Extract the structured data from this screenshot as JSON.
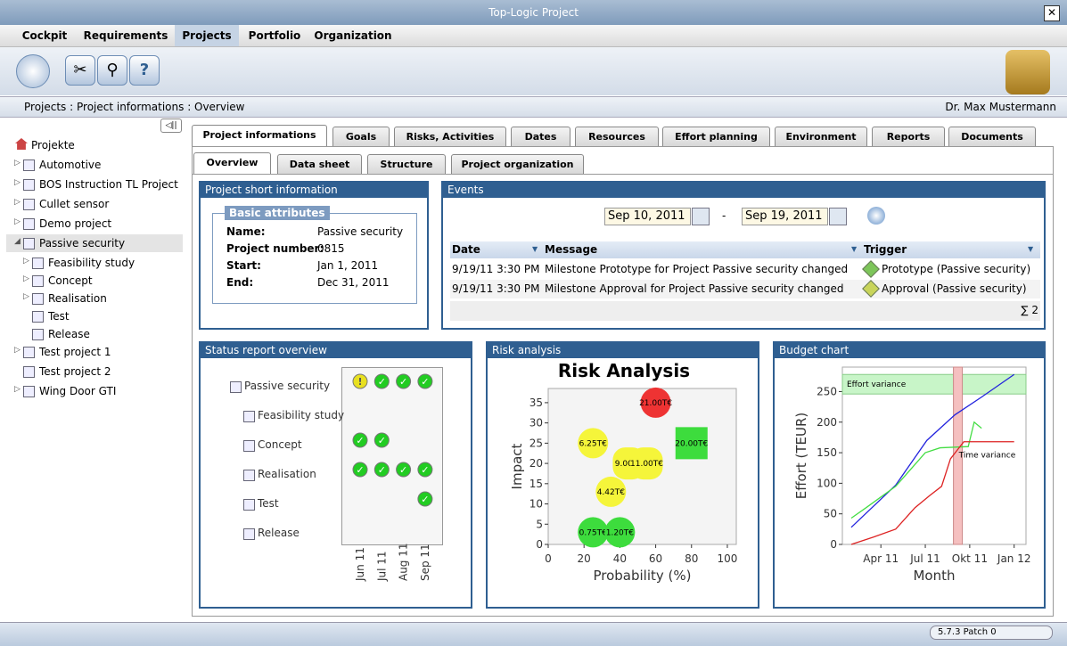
{
  "window_title": "Top-Logic Project",
  "menu": {
    "items": [
      "Cockpit",
      "Requirements",
      "Projects",
      "Portfolio",
      "Organization"
    ],
    "active": 2
  },
  "breadcrumb": [
    "Projects :",
    "Project informations :",
    "Overview"
  ],
  "user": "Dr. Max Mustermann",
  "tree": {
    "root": "Projekte",
    "items": [
      {
        "label": "Automotive",
        "state": "collapsed"
      },
      {
        "label": "BOS Instruction TL Project",
        "state": "collapsed"
      },
      {
        "label": "Cullet sensor",
        "state": "collapsed"
      },
      {
        "label": "Demo project",
        "state": "collapsed"
      },
      {
        "label": "Passive security",
        "state": "expanded",
        "selected": true,
        "children": [
          {
            "label": "Feasibility study",
            "state": "collapsed"
          },
          {
            "label": "Concept",
            "state": "collapsed"
          },
          {
            "label": "Realisation",
            "state": "collapsed"
          },
          {
            "label": "Test",
            "state": "leaf"
          },
          {
            "label": "Release",
            "state": "leaf"
          }
        ]
      },
      {
        "label": "Test project 1",
        "state": "collapsed"
      },
      {
        "label": "Test project 2",
        "state": "leaf"
      },
      {
        "label": "Wing Door GTI",
        "state": "collapsed"
      }
    ]
  },
  "tabs": {
    "items": [
      "Project informations",
      "Goals",
      "Risks, Activities",
      "Dates",
      "Resources",
      "Effort planning",
      "Environment",
      "Reports",
      "Documents"
    ],
    "active": 0
  },
  "subtabs": {
    "items": [
      "Overview",
      "Data sheet",
      "Structure",
      "Project organization"
    ],
    "active": 0
  },
  "short_info": {
    "title": "Project short information",
    "group": "Basic attributes",
    "fields": [
      {
        "label": "Name:",
        "value": "Passive security"
      },
      {
        "label": "Project number:",
        "value": "0815"
      },
      {
        "label": "Start:",
        "value": "Jan 1, 2011"
      },
      {
        "label": "End:",
        "value": "Dec 31, 2011"
      }
    ]
  },
  "events": {
    "title": "Events",
    "from": "Sep 10, 2011",
    "separator": "-",
    "to": "Sep 19, 2011",
    "columns": [
      "Date",
      "Message",
      "Trigger"
    ],
    "rows": [
      {
        "date": "9/19/11 3:30 PM",
        "message": "Milestone Prototype for Project Passive security changed",
        "trigger": "Prototype (Passive security)",
        "color": "#7dc55a"
      },
      {
        "date": "9/19/11 3:30 PM",
        "message": "Milestone Approval for Project Passive security changed",
        "trigger": "Approval (Passive security)",
        "color": "#c8d45a"
      }
    ],
    "sum": "∑ 2"
  },
  "status": {
    "title": "Status report overview",
    "items": [
      "Passive security",
      "Feasibility study",
      "Concept",
      "Realisation",
      "Test",
      "Release"
    ],
    "months": [
      "Jun 11",
      "Jul 11",
      "Aug 11",
      "Sep 11"
    ],
    "statuses": [
      [
        "warning",
        "ok",
        "ok",
        "ok"
      ],
      [
        "none",
        "none",
        "none",
        "none"
      ],
      [
        "ok",
        "ok",
        "none",
        "none"
      ],
      [
        "ok",
        "ok",
        "ok",
        "ok"
      ],
      [
        "none",
        "none",
        "none",
        "ok"
      ],
      [
        "none",
        "none",
        "none",
        "none"
      ]
    ]
  },
  "risk": {
    "panel_title": "Risk analysis",
    "chart_data": {
      "type": "scatter",
      "title": "Risk Analysis",
      "x_label": "Probability (%)",
      "y_label": "Impact",
      "xlim": [
        0,
        105
      ],
      "xticks": [
        0,
        20,
        40,
        60,
        80,
        100
      ],
      "ylim": [
        0,
        38.5
      ],
      "yticks": [
        0,
        5,
        10,
        15,
        20,
        25,
        30,
        35
      ],
      "x": [
        60,
        25,
        80,
        45,
        55,
        35,
        25,
        40
      ],
      "values": [
        35,
        25,
        25,
        20,
        20,
        13,
        3,
        3
      ],
      "labels": [
        "21.00T€",
        "6.25T€",
        "20.00T€",
        "9.00T€",
        "11.00T€",
        "4.42T€",
        "0.75T€",
        "1.20T€"
      ],
      "colors": [
        "#ee3333",
        "#f5f53a",
        "#3ddc3d",
        "#f5f53a",
        "#f5f53a",
        "#f5f53a",
        "#3ddc3d",
        "#3ddc3d"
      ],
      "shapes": [
        "circle",
        "circle",
        "square",
        "rounded",
        "rounded",
        "circle",
        "circle",
        "circle"
      ]
    }
  },
  "budget": {
    "panel_title": "Budget chart",
    "chart_data": {
      "type": "line",
      "x_label": "Month",
      "y_label": "Effort (TEUR)",
      "xlim": [
        1.4,
        13.8
      ],
      "xticks": [
        {
          "value": 4,
          "label": "Apr 11"
        },
        {
          "value": 7,
          "label": "Jul 11"
        },
        {
          "value": 10,
          "label": "Okt 11"
        },
        {
          "value": 13,
          "label": "Jan 12"
        }
      ],
      "ylim": [
        0,
        290
      ],
      "yticks": [
        0,
        50,
        100,
        150,
        200,
        250
      ],
      "series": [
        {
          "color": "#2222dd",
          "x": [
            2,
            5,
            7.1,
            9,
            10.8,
            13
          ],
          "values": [
            28,
            97,
            170,
            212,
            241,
            278
          ]
        },
        {
          "color": "#44dd44",
          "x": [
            2,
            3,
            5,
            7,
            8,
            9.9,
            10.3,
            10.8
          ],
          "values": [
            43,
            60,
            95,
            150,
            158,
            160,
            200,
            190
          ]
        },
        {
          "color": "#dd2222",
          "x": [
            2,
            3.5,
            5,
            6.3,
            7.3,
            8.1,
            8.7,
            9.6,
            13
          ],
          "values": [
            0,
            12,
            25,
            60,
            80,
            95,
            140,
            168,
            168
          ]
        }
      ],
      "bands": [
        {
          "label": "Effort variance",
          "axis": "y",
          "from": 246,
          "to": 278,
          "color": "#c8f5c8"
        },
        {
          "label": "Time variance",
          "axis": "x",
          "from": 8.9,
          "to": 9.5,
          "color": "#f5c0c0"
        }
      ]
    }
  },
  "version": "5.7.3 Patch 0"
}
